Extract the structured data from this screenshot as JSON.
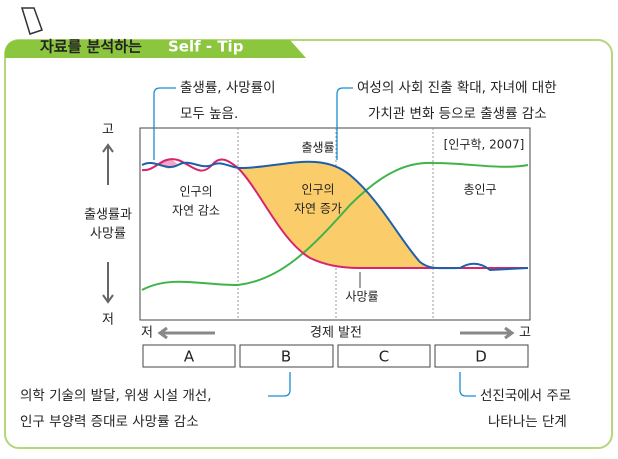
{
  "header": {
    "title": "자료를 분석하는",
    "tag": "Self - Tip"
  },
  "annotations": {
    "top_left": [
      "출생률, 사망률이",
      "모두 높음."
    ],
    "top_right": [
      "여성의 사회 진출 확대, 자녀에 대한",
      "가치관 변화 등으로 출생률 감소"
    ],
    "bottom_left": [
      "의학 기술의 발달, 위생 시설 개선,",
      "인구 부양력 증대로 사망률 감소"
    ],
    "bottom_right": [
      "선진국에서 주로",
      "나타나는 단계"
    ]
  },
  "chart": {
    "y_axis": {
      "high": "고",
      "label": [
        "출생률과",
        "사망률"
      ],
      "low": "저"
    },
    "x_axis": {
      "low": "저",
      "label": "경제 발전",
      "high": "고"
    },
    "source": "[인구학, 2007]",
    "birth_rate": "출생률",
    "death_rate": "사망률",
    "total_population": "총인구",
    "natural_decrease": [
      "인구의",
      "자연 감소"
    ],
    "natural_increase": [
      "인구의",
      "자연 증가"
    ]
  },
  "stages": [
    "A",
    "B",
    "C",
    "D"
  ]
}
